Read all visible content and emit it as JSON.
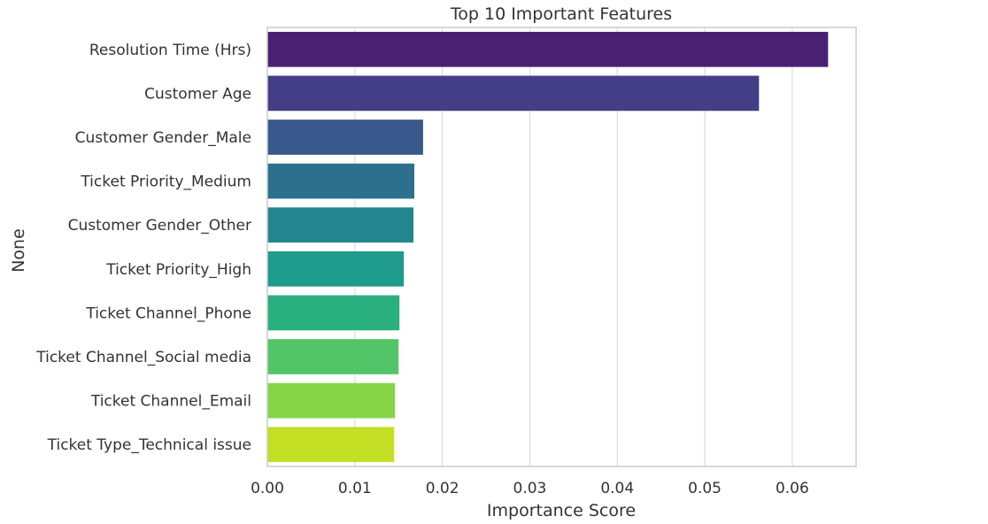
{
  "chart_data": {
    "type": "bar",
    "orientation": "horizontal",
    "title": "Top 10 Important Features",
    "xlabel": "Importance Score",
    "ylabel": "None",
    "categories": [
      "Resolution Time (Hrs)",
      "Customer Age",
      "Customer Gender_Male",
      "Ticket Priority_Medium",
      "Customer Gender_Other",
      "Ticket Priority_High",
      "Ticket Channel_Phone",
      "Ticket Channel_Social media",
      "Ticket Channel_Email",
      "Ticket Type_Technical issue"
    ],
    "values": [
      0.0641,
      0.0562,
      0.0178,
      0.0168,
      0.0167,
      0.0156,
      0.0151,
      0.015,
      0.0146,
      0.0145
    ],
    "colors": [
      "#482173",
      "#433e85",
      "#38588c",
      "#2d708e",
      "#25858e",
      "#1e9b8a",
      "#2ab07f",
      "#52c569",
      "#86d549",
      "#c2df23"
    ],
    "xticks": [
      "0.00",
      "0.01",
      "0.02",
      "0.03",
      "0.04",
      "0.05",
      "0.06"
    ],
    "xtick_values": [
      0,
      0.01,
      0.02,
      0.03,
      0.04,
      0.05,
      0.06
    ],
    "xlim": [
      0,
      0.0673
    ],
    "grid": "vertical",
    "legend": "none"
  }
}
